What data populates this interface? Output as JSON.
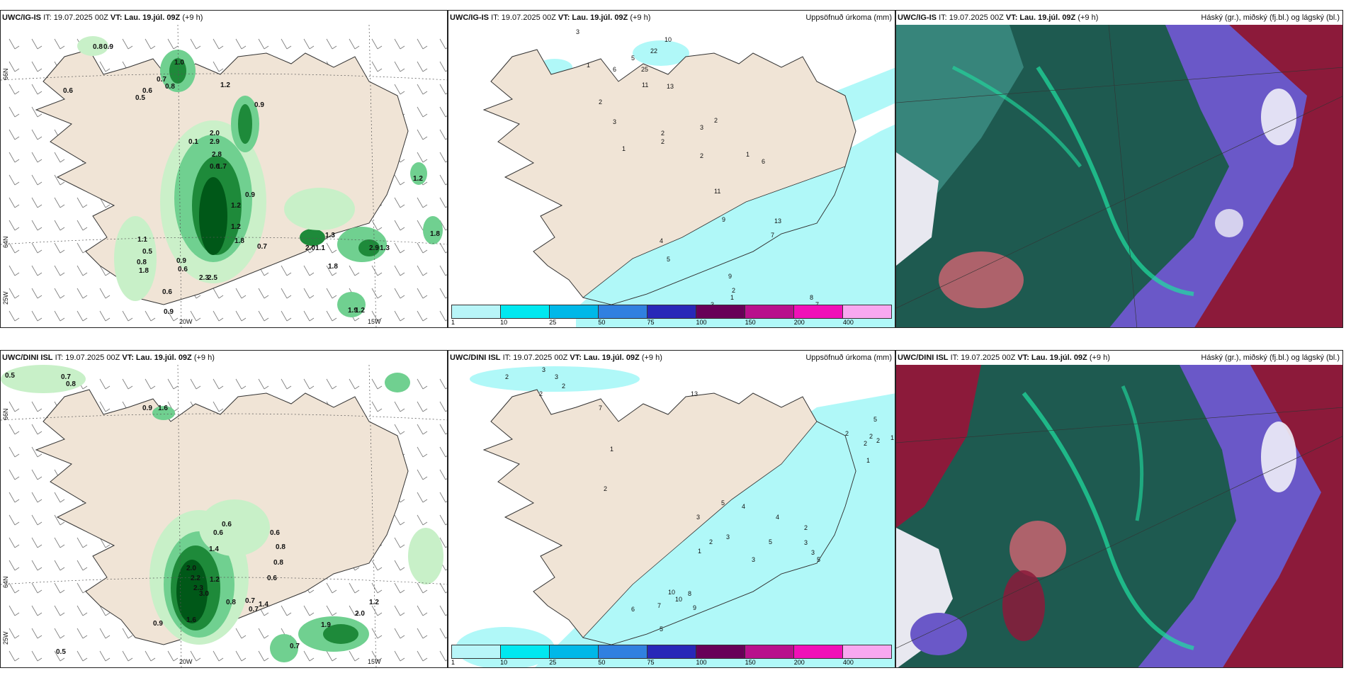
{
  "rows": [
    {
      "model": "UWC/IG-IS",
      "panels": [
        {
          "name": "wind-precip",
          "model": "UWC/IG-IS",
          "it": "IT: 19.07.2025 00Z",
          "vt": "VT: Lau. 19.júl. 09Z",
          "offset": "(+9 h)",
          "right_title": ""
        },
        {
          "name": "accum-precip",
          "model": "UWC/IG-IS",
          "it": "IT: 19.07.2025 00Z",
          "vt": "VT: Lau. 19.júl. 09Z",
          "offset": "(+9 h)",
          "right_title": "Uppsöfnuð úrkoma (mm)"
        },
        {
          "name": "cloud",
          "model": "UWC/IG-IS",
          "it": "IT: 19.07.2025 00Z",
          "vt": "VT: Lau. 19.júl. 09Z",
          "offset": "(+9 h)",
          "right_title": "Háský (gr.), miðský (fj.bl.) og lágský (bl.)"
        }
      ],
      "grid_labels": {
        "lat66": "66N",
        "lat64": "64N",
        "lon25": "25W",
        "lon20": "20W",
        "lon15": "15W"
      },
      "precip_labels": [
        "0.8",
        "0.9",
        "1.0",
        "0.6",
        "0.6",
        "0.5",
        "0.7",
        "0.8",
        "1.2",
        "0.9",
        "2.0",
        "2.9",
        "0.1",
        "2.8",
        "1.7",
        "0.6",
        "0.9",
        "1.2",
        "1.1",
        "0.5",
        "0.8",
        "1.8",
        "0.6",
        "0.9",
        "2.3",
        "2.5",
        "1.2",
        "1.8",
        "0.6",
        "0.9",
        "0.7",
        "2.0",
        "1.1",
        "1.3",
        "1.8",
        "2.9",
        "1.3",
        "1.8",
        "1.9",
        "1.2",
        "1.2"
      ],
      "accum_labels": [
        "3",
        "10",
        "22",
        "25",
        "5",
        "6",
        "1",
        "11",
        "13",
        "2",
        "3",
        "1",
        "2",
        "2",
        "3",
        "2",
        "2",
        "6",
        "1",
        "11",
        "9",
        "13",
        "7",
        "4",
        "5",
        "9",
        "2",
        "1",
        "3",
        "7",
        "8"
      ]
    },
    {
      "model": "UWC/DINI ISL",
      "panels": [
        {
          "name": "wind-precip",
          "model": "UWC/DINI ISL",
          "it": "IT: 19.07.2025 00Z",
          "vt": "VT: Lau. 19.júl. 09Z",
          "offset": "(+9 h)",
          "right_title": ""
        },
        {
          "name": "accum-precip",
          "model": "UWC/DINI ISL",
          "it": "IT: 19.07.2025 00Z",
          "vt": "VT: Lau. 19.júl. 09Z",
          "offset": "(+9 h)",
          "right_title": "Uppsöfnuð úrkoma (mm)"
        },
        {
          "name": "cloud",
          "model": "UWC/DINI ISL",
          "it": "IT: 19.07.2025 00Z",
          "vt": "VT: Lau. 19.júl. 09Z",
          "offset": "(+9 h)",
          "right_title": "Háský (gr.), miðský (fj.bl.) og lágský (bl.)"
        }
      ],
      "grid_labels": {
        "lat66": "66N",
        "lat64": "64N",
        "lon25": "25W",
        "lon20": "20W",
        "lon15": "15W"
      },
      "precip_labels": [
        "0.5",
        "0.7",
        "0.8",
        "0.9",
        "1.6",
        "0.6",
        "0.6",
        "1.4",
        "0.6",
        "0.8",
        "0.8",
        "0.6",
        "2.0",
        "1.2",
        "2.2",
        "2.3",
        "3.0",
        "0.8",
        "0.7",
        "1.4",
        "0.7",
        "1.6",
        "0.5",
        "0.9",
        "0.7",
        "1.9",
        "2.0",
        "1.2"
      ],
      "accum_labels": [
        "2",
        "3",
        "3",
        "2",
        "2",
        "13",
        "7",
        "1",
        "2",
        "3",
        "1",
        "2",
        "3",
        "5",
        "4",
        "4",
        "5",
        "2",
        "3",
        "3",
        "5",
        "3",
        "10",
        "10",
        "8",
        "9",
        "7",
        "6",
        "5",
        "3",
        "5",
        "2",
        "1",
        "2",
        "1",
        "2",
        "2"
      ]
    }
  ],
  "colorbar": {
    "ticks": [
      "1",
      "10",
      "25",
      "50",
      "75",
      "100",
      "150",
      "200",
      "400"
    ],
    "colors": [
      "#b8f5f8",
      "#00e8f0",
      "#00b8e8",
      "#3080e0",
      "#2828b8",
      "#680058",
      "#b8108c",
      "#f010b8",
      "#f8a8f0"
    ]
  },
  "colors": {
    "land": "#f0e4d6",
    "precip_light": "#c8f0c8",
    "precip_mid": "#70d090",
    "precip_dark": "#005818",
    "accum_cyan": "#b0f8f8",
    "cloud_teal": "#1e5a50",
    "cloud_purple": "#6a58c8",
    "cloud_maroon": "#8c1a3a"
  }
}
